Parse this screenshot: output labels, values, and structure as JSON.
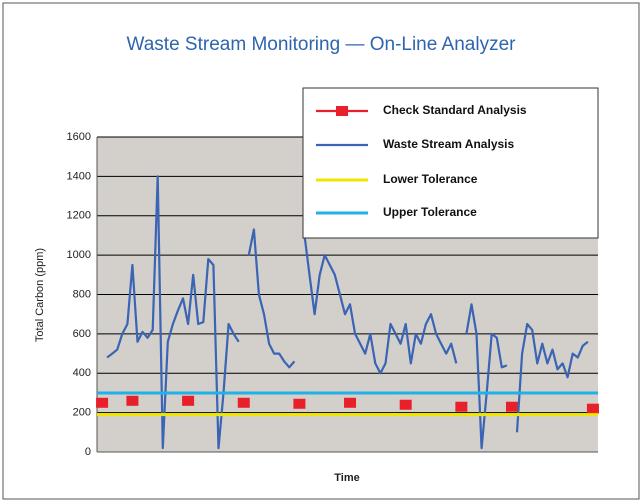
{
  "chart_data": {
    "type": "line",
    "title": "Waste Stream Monitoring — On-Line Analyzer",
    "xlabel": "Time",
    "ylabel": "Total Carbon (ppm)",
    "x": [
      0,
      1,
      2,
      3,
      4,
      5,
      6,
      7,
      8,
      9,
      10,
      11,
      12,
      13,
      14,
      15,
      16,
      17,
      18,
      19,
      20,
      21,
      22,
      23,
      24,
      25,
      26,
      27,
      28,
      29,
      30,
      31,
      32,
      33,
      34,
      35,
      36,
      37,
      38,
      39,
      40,
      41,
      42,
      43,
      44,
      45,
      46,
      47,
      48,
      49,
      50,
      51,
      52,
      53,
      54,
      55,
      56,
      57,
      58,
      59,
      60,
      61,
      62,
      63,
      64,
      65,
      66,
      67,
      68,
      69,
      70,
      71,
      72,
      73,
      74,
      75,
      76,
      77,
      78,
      79,
      80,
      81,
      82,
      83,
      84,
      85,
      86,
      87,
      88,
      89,
      90,
      91,
      92,
      93,
      94,
      95,
      96,
      97,
      98,
      99
    ],
    "xlim": [
      0,
      99
    ],
    "ylim": [
      0,
      1600
    ],
    "yticks": [
      0,
      200,
      400,
      600,
      800,
      1000,
      1200,
      1400,
      1600
    ],
    "grid": true,
    "background": "#d3cfcb",
    "legend": "upper right",
    "series": [
      {
        "name": "Check Standard Analysis",
        "color": "#e8202a",
        "marker": "square",
        "values": [
          null,
          250,
          null,
          null,
          null,
          null,
          null,
          260,
          null,
          null,
          null,
          null,
          null,
          null,
          null,
          null,
          null,
          null,
          260,
          null,
          null,
          null,
          null,
          null,
          null,
          null,
          null,
          null,
          null,
          250,
          null,
          null,
          null,
          null,
          null,
          null,
          null,
          null,
          null,
          null,
          245,
          null,
          null,
          null,
          null,
          null,
          null,
          null,
          null,
          null,
          250,
          null,
          null,
          null,
          null,
          null,
          null,
          null,
          null,
          null,
          null,
          240,
          null,
          null,
          null,
          null,
          null,
          null,
          null,
          null,
          null,
          null,
          230,
          null,
          null,
          null,
          null,
          null,
          null,
          null,
          null,
          null,
          230,
          null,
          null,
          null,
          null,
          null,
          null,
          null,
          null,
          null,
          null,
          null,
          null,
          null,
          null,
          null,
          220,
          null
        ]
      },
      {
        "name": "Waste Stream Analysis",
        "color": "#3a64b4",
        "values": [
          null,
          null,
          480,
          500,
          520,
          600,
          650,
          950,
          560,
          610,
          580,
          620,
          1400,
          20,
          560,
          650,
          720,
          780,
          650,
          900,
          650,
          660,
          980,
          950,
          20,
          300,
          650,
          600,
          560,
          null,
          1000,
          1130,
          800,
          700,
          550,
          500,
          500,
          460,
          430,
          460,
          null,
          1100,
          900,
          700,
          900,
          1000,
          950,
          900,
          800,
          700,
          750,
          600,
          550,
          500,
          600,
          450,
          400,
          450,
          650,
          600,
          550,
          650,
          450,
          600,
          550,
          650,
          700,
          600,
          550,
          500,
          550,
          450,
          null,
          600,
          750,
          600,
          20,
          300,
          600,
          580,
          430,
          440,
          null,
          100,
          500,
          650,
          620,
          450,
          550,
          450,
          520,
          420,
          450,
          380,
          500,
          480,
          540,
          560,
          null,
          null
        ]
      },
      {
        "name": "Lower Tolerance",
        "color": "#f2e600",
        "kind": "hline",
        "value": 190
      },
      {
        "name": "Upper Tolerance",
        "color": "#1fb2e6",
        "kind": "hline",
        "value": 300
      }
    ]
  }
}
